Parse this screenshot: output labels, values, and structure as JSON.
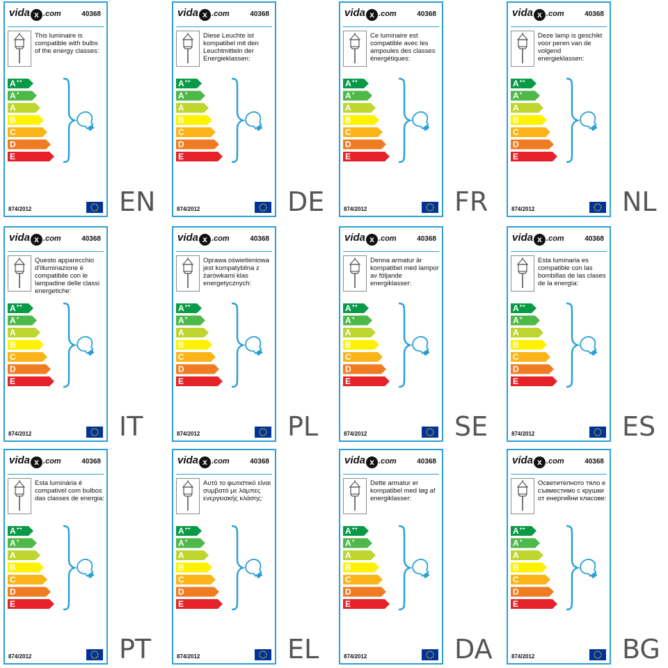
{
  "brand": {
    "name": "vida",
    "mark": "x",
    "domain": ".com"
  },
  "product_code": "40368",
  "regulation": "874/2012",
  "energy_classes": [
    {
      "label": "A",
      "sup": "++",
      "color": "#0a9a47"
    },
    {
      "label": "A",
      "sup": "+",
      "color": "#4eb848"
    },
    {
      "label": "A",
      "sup": "",
      "color": "#bdd630"
    },
    {
      "label": "B",
      "sup": "",
      "color": "#fff100"
    },
    {
      "label": "C",
      "sup": "",
      "color": "#fbb417"
    },
    {
      "label": "D",
      "sup": "",
      "color": "#ef7c22"
    },
    {
      "label": "E",
      "sup": "",
      "color": "#e52229"
    }
  ],
  "colors": {
    "border": "#2a9fd6",
    "bracket": "#2a9fd6",
    "eu_blue": "#003399",
    "eu_star": "#ffcc00"
  },
  "icons": [
    "lantern-icon",
    "bulb-icon",
    "eu-flag-icon",
    "bracket-icon"
  ],
  "labels": [
    {
      "lang": "EN",
      "text": "This luminaire is compatible with bulbs of the energy classes:"
    },
    {
      "lang": "DE",
      "text": "Diese Leuchte ist kompatibel mit den Leuchtmitteln der Energieklassen:"
    },
    {
      "lang": "FR",
      "text": "Ce luminaire est compatible avec les ampoules des classes énergétiques:"
    },
    {
      "lang": "NL",
      "text": "Deze lamp is geschikt voor peren van de volgend energieklassen:"
    },
    {
      "lang": "IT",
      "text": "Questo apparecchio d'illuminazione è compatibile con le lampadine delle classi energetiche:"
    },
    {
      "lang": "PL",
      "text": "Oprawa oświetleniowa jest kompatybilna z żarówkami klas energetycznych:"
    },
    {
      "lang": "SE",
      "text": " Denna armatur är kompatibel med lampor av följande energiklasser:"
    },
    {
      "lang": "ES",
      "text": "Esta luminaria es compatible con las bombillas de las clases de la energía:"
    },
    {
      "lang": "PT",
      "text": "Esta luminária é compativel com bulbos das classes de energia:"
    },
    {
      "lang": "EL",
      "text": "Αυτό το φωτιστικό είναι συμβατό με λάμπες ενεργειακής κλάσης:"
    },
    {
      "lang": "DA",
      "text": "Dette armatur er kompatibel med løg af energiklasser:"
    },
    {
      "lang": "BG",
      "text": "Осветителното тяло е съвместимо с крушки от енергийни класове:"
    }
  ]
}
